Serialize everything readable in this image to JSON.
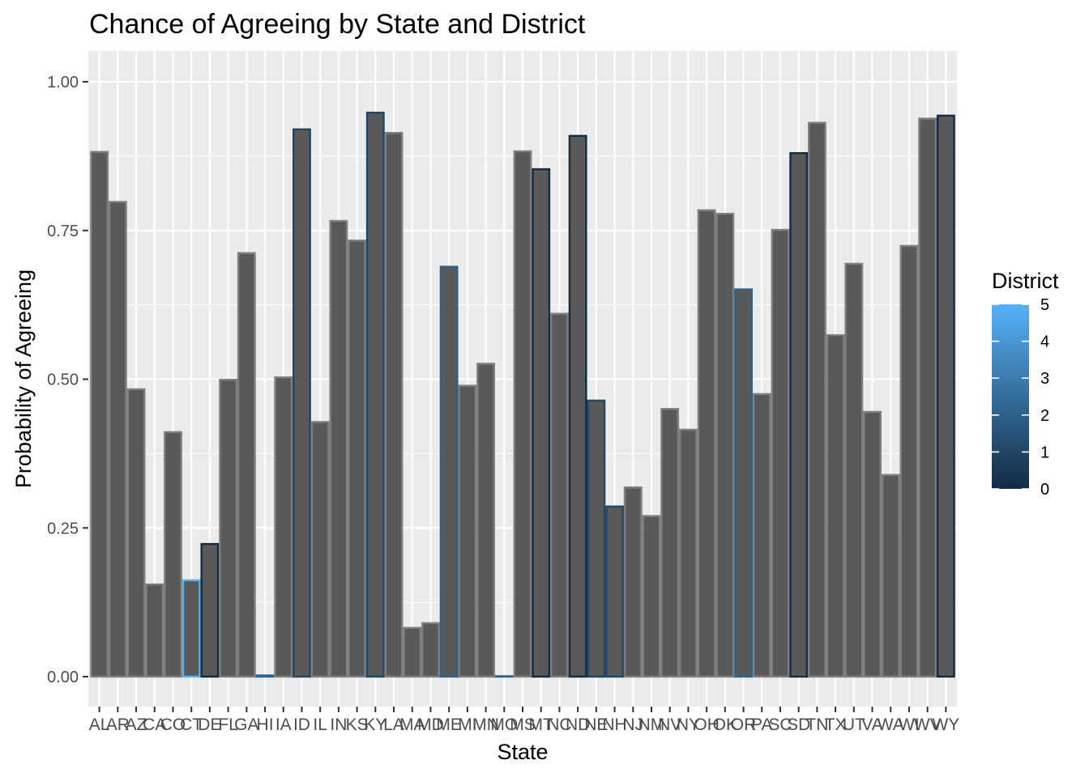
{
  "chart_data": {
    "type": "bar",
    "title": "Chance of Agreeing by State and District",
    "xlabel": "State",
    "ylabel": "Probability of Agreeing",
    "ylim": [
      -0.048,
      1.048
    ],
    "yticks": [
      "0.00",
      "0.25",
      "0.50",
      "0.75",
      "1.00"
    ],
    "ytick_values": [
      0,
      0.25,
      0.5,
      0.75,
      1.0
    ],
    "grid": true,
    "categories": [
      "AL",
      "AR",
      "AZ",
      "CA",
      "CO",
      "CT",
      "DE",
      "FL",
      "GA",
      "HI",
      "IA",
      "ID",
      "IL",
      "IN",
      "KS",
      "KY",
      "LA",
      "MA",
      "MD",
      "ME",
      "MI",
      "MN",
      "MO",
      "MS",
      "MT",
      "NC",
      "ND",
      "NE",
      "NH",
      "NJ",
      "NM",
      "NV",
      "NY",
      "OH",
      "OK",
      "OR",
      "PA",
      "SC",
      "SD",
      "TN",
      "TX",
      "UT",
      "VA",
      "WA",
      "WI",
      "WV",
      "WY"
    ],
    "values": [
      0.882,
      0.798,
      0.483,
      0.155,
      0.411,
      0.162,
      0.223,
      0.499,
      0.712,
      0.002,
      0.503,
      0.92,
      0.428,
      0.766,
      0.733,
      0.948,
      0.914,
      0.082,
      0.09,
      0.689,
      0.489,
      0.526,
      0.0,
      0.883,
      0.853,
      0.61,
      0.909,
      0.464,
      0.286,
      0.318,
      0.27,
      0.45,
      0.415,
      0.784,
      0.778,
      0.651,
      0.475,
      0.751,
      0.88,
      0.931,
      0.574,
      0.694,
      0.445,
      0.339,
      0.724,
      0.938,
      0.943
    ],
    "outline_district": [
      null,
      null,
      null,
      null,
      null,
      5,
      0,
      null,
      null,
      2,
      null,
      1,
      null,
      null,
      null,
      1,
      null,
      null,
      null,
      2,
      null,
      null,
      2,
      null,
      0,
      null,
      0,
      1,
      1,
      null,
      null,
      null,
      null,
      null,
      null,
      2,
      null,
      null,
      0,
      null,
      null,
      null,
      null,
      null,
      null,
      null,
      0
    ],
    "legend": {
      "title": "District",
      "position": "right",
      "range": [
        0,
        5
      ],
      "ticks": [
        "0",
        "1",
        "2",
        "3",
        "4",
        "5"
      ],
      "tick_values": [
        0,
        1,
        2,
        3,
        4,
        5
      ],
      "color_low": "#132b43",
      "color_high": "#56b1f7"
    },
    "bar_fill": "#595959",
    "na_outline": "#7f7f7f",
    "panel_bg": "#ebebeb"
  }
}
